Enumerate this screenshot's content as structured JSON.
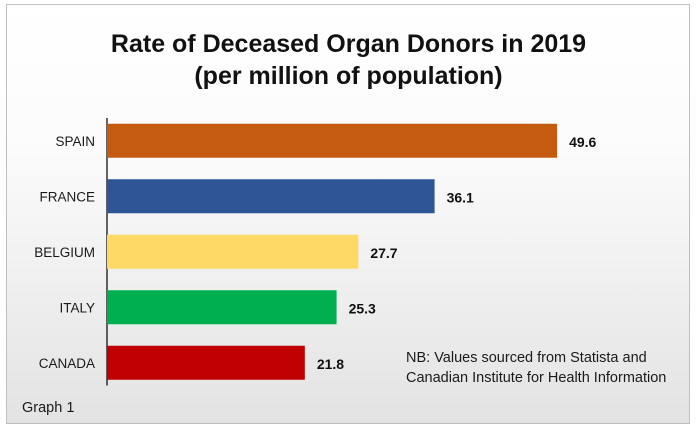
{
  "chart_data": {
    "type": "bar",
    "orientation": "horizontal",
    "title": "Rate of Deceased Organ Donors in 2019",
    "subtitle": "(per million of population)",
    "categories": [
      "SPAIN",
      "FRANCE",
      "BELGIUM",
      "ITALY",
      "CANADA"
    ],
    "values": [
      49.6,
      36.1,
      27.7,
      25.3,
      21.8
    ],
    "value_labels": [
      "49.6",
      "36.1",
      "27.7",
      "25.3",
      "21.8"
    ],
    "colors": [
      "#C55A11",
      "#2F5597",
      "#FFD966",
      "#00B050",
      "#C00000"
    ],
    "xlim": [
      0,
      54
    ],
    "grid": false,
    "legend": "none",
    "note": "NB: Values sourced from Statista and Canadian Institute for Health Information",
    "footer": "Graph 1"
  }
}
